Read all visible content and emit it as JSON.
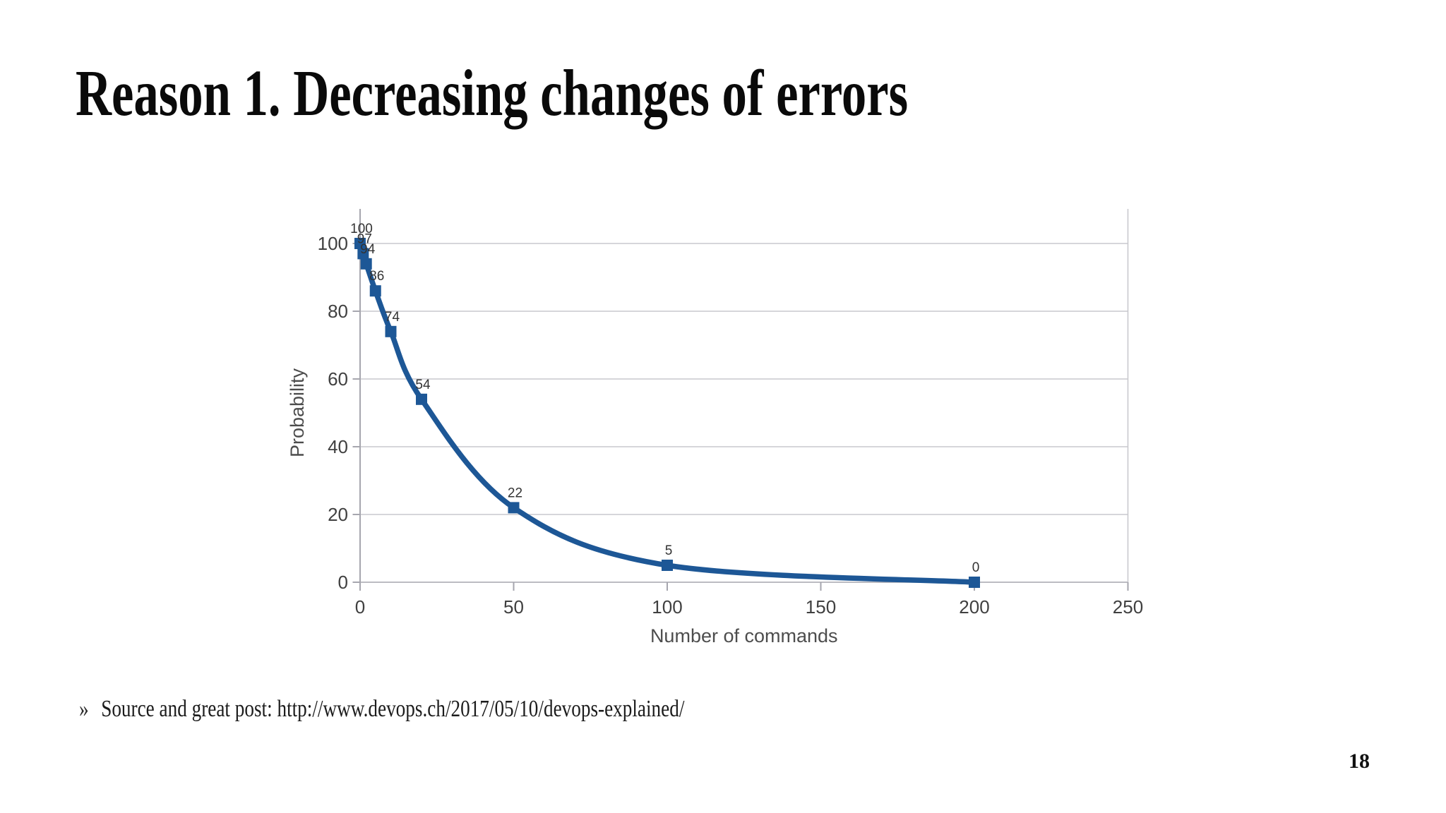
{
  "slide": {
    "title": "Reason 1. Decreasing changes of errors",
    "bullet_marker": "»",
    "source_text": "Source and great post: http://www.devops.ch/2017/05/10/devops-explained/",
    "page_number": "18"
  },
  "chart_data": {
    "type": "line",
    "title": "",
    "xlabel": "Number of commands",
    "ylabel": "Probability",
    "x": [
      0,
      1,
      2,
      5,
      10,
      20,
      50,
      100,
      200
    ],
    "y": [
      100,
      97,
      94,
      86,
      74,
      54,
      22,
      5,
      0
    ],
    "point_labels": [
      "100",
      "97",
      "94",
      "86",
      "74",
      "54",
      "22",
      "5",
      "0"
    ],
    "xlim": [
      0,
      250
    ],
    "ylim": [
      0,
      100
    ],
    "xticks": [
      0,
      50,
      100,
      150,
      200,
      250
    ],
    "yticks": [
      0,
      20,
      40,
      60,
      80,
      100
    ],
    "grid": true,
    "legend": "none",
    "smooth": true,
    "marker": "square",
    "line_color": "#1d5796",
    "marker_color": "#1d5796",
    "grid_color": "#c9c9ce",
    "axis_color": "#a6a6ae",
    "tick_label_color": "#404040",
    "axis_title_color": "#4d4d4d",
    "data_label_color": "#333333"
  }
}
